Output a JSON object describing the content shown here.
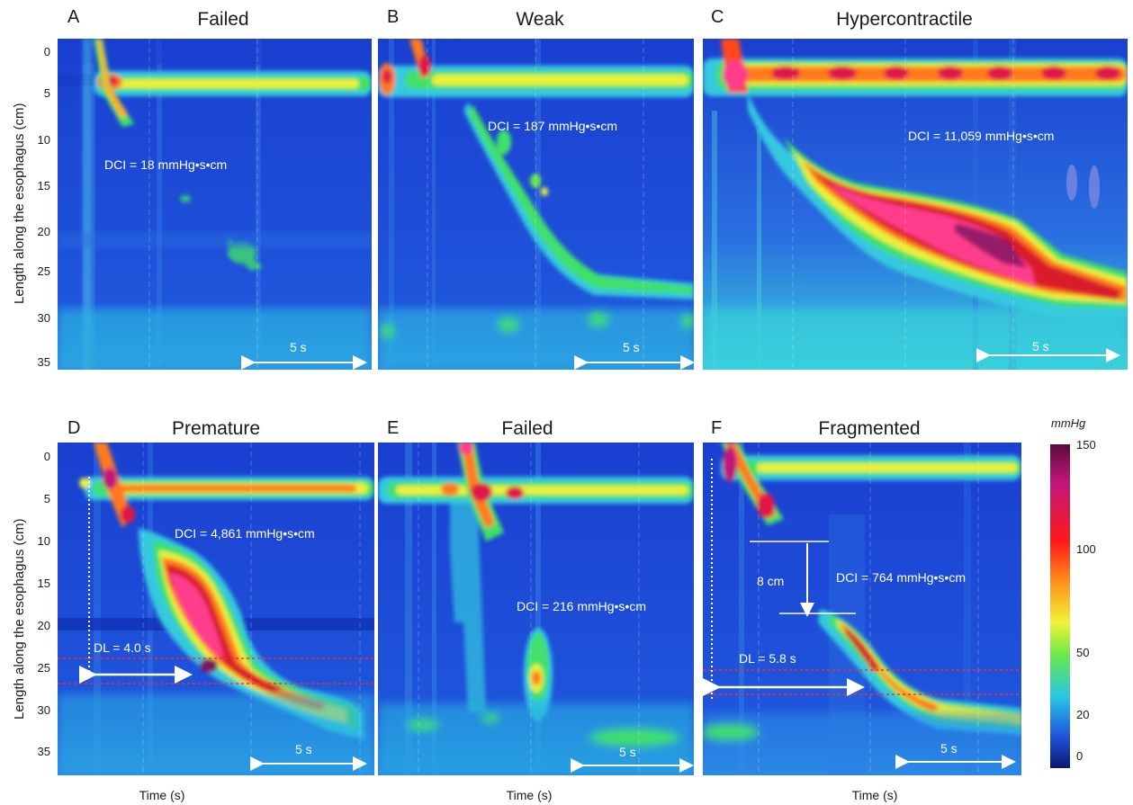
{
  "figure": {
    "ylabel": "Length along the esophagus (cm)",
    "xlabel": "Time (s)",
    "colorbar": {
      "unit": "mmHg",
      "ticks": [
        "150",
        "100",
        "50",
        "20",
        "0"
      ]
    },
    "yticks": [
      "0",
      "5",
      "10",
      "15",
      "20",
      "25",
      "30",
      "35"
    ],
    "scalebar_label": "5 s"
  },
  "panels": [
    {
      "letter": "A",
      "title": "Failed",
      "dci": "DCI = 18 mmHg•s•cm"
    },
    {
      "letter": "B",
      "title": "Weak",
      "dci": "DCI = 187 mmHg•s•cm"
    },
    {
      "letter": "C",
      "title": "Hypercontractile",
      "dci": "DCI = 11,059 mmHg•s•cm"
    },
    {
      "letter": "D",
      "title": "Premature",
      "dci": "DCI = 4,861 mmHg•s•cm",
      "dl": "DL = 4.0 s"
    },
    {
      "letter": "E",
      "title": "Failed",
      "dci": "DCI = 216 mmHg•s•cm"
    },
    {
      "letter": "F",
      "title": "Fragmented",
      "dci": "DCI = 764 mmHg•s•cm",
      "dl": "DL = 5.8 s",
      "gap": "8 cm"
    }
  ],
  "chart_data": [
    {
      "type": "heatmap",
      "panel": "A",
      "title": "Failed",
      "ylabel": "Length along the esophagus (cm)",
      "xlabel": "Time (s)",
      "ylim": [
        0,
        36
      ],
      "dci_mmHg_s_cm": 18,
      "colorbar_range_mmHg": [
        0,
        150
      ]
    },
    {
      "type": "heatmap",
      "panel": "B",
      "title": "Weak",
      "ylim": [
        0,
        36
      ],
      "dci_mmHg_s_cm": 187
    },
    {
      "type": "heatmap",
      "panel": "C",
      "title": "Hypercontractile",
      "ylim": [
        0,
        36
      ],
      "dci_mmHg_s_cm": 11059
    },
    {
      "type": "heatmap",
      "panel": "D",
      "title": "Premature",
      "ylim": [
        0,
        36
      ],
      "dci_mmHg_s_cm": 4861,
      "distal_latency_s": 4.0
    },
    {
      "type": "heatmap",
      "panel": "E",
      "title": "Failed",
      "ylim": [
        0,
        36
      ],
      "dci_mmHg_s_cm": 216
    },
    {
      "type": "heatmap",
      "panel": "F",
      "title": "Fragmented",
      "ylim": [
        0,
        36
      ],
      "dci_mmHg_s_cm": 764,
      "distal_latency_s": 5.8,
      "break_length_cm": 8
    }
  ],
  "colors": {
    "background_blue": "#1e4fd8",
    "deep_blue": "#0f2fb0",
    "cyan": "#28c6e6",
    "green": "#2fdc6a",
    "yellow": "#f2f23a",
    "orange": "#ff8c1a",
    "red": "#e01e1e",
    "magenta": "#ff3c8c",
    "purple": "#7a1560"
  }
}
